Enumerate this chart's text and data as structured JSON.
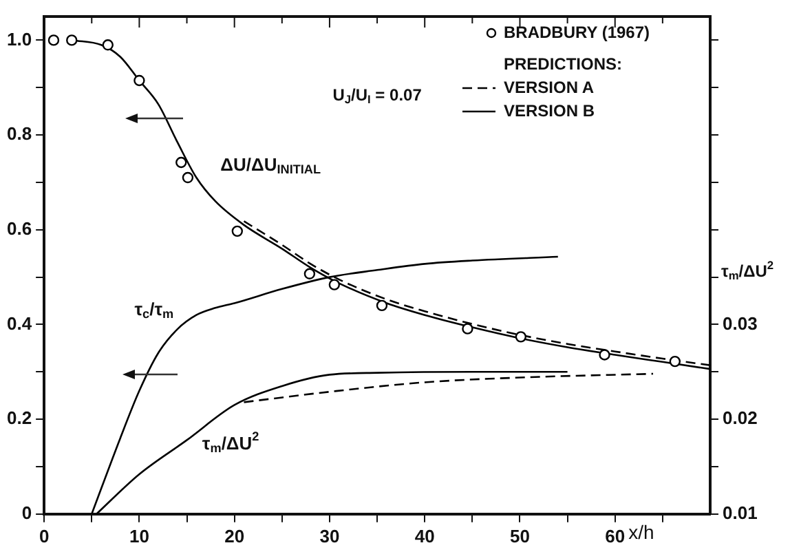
{
  "chart_data": {
    "type": "line",
    "xlabel": "x/h",
    "y2label": "τ$_{m}$/ΔU$^{2}$",
    "legend": "top right",
    "legend_title": "PREDICTIONS:",
    "grid": false,
    "xlim": [
      0,
      70
    ],
    "xticks": [
      0,
      {
        "value": 5,
        "label": null
      },
      10,
      {
        "value": 15,
        "label": null
      },
      20,
      {
        "value": 25,
        "label": null
      },
      30,
      {
        "value": 35,
        "label": null
      },
      40,
      {
        "value": 45,
        "label": null
      },
      50,
      {
        "value": 55,
        "label": null
      },
      60,
      {
        "value": 65,
        "label": null
      }
    ],
    "ylim": [
      0,
      1.05
    ],
    "yticks": [
      0,
      {
        "value": 0.1,
        "label": null
      },
      0.2,
      {
        "value": 0.3,
        "label": null
      },
      0.4,
      {
        "value": 0.5,
        "label": null
      },
      0.6,
      {
        "value": 0.7,
        "label": null
      },
      0.8,
      {
        "value": 0.9,
        "label": null
      },
      {
        "value": 1,
        "label": "1.0"
      }
    ],
    "y2lim": [
      0.01,
      0.0625
    ],
    "y2ticks": [
      0.01,
      {
        "value": 0.015,
        "label": null
      },
      0.02,
      {
        "value": 0.025,
        "label": null
      },
      0.03,
      {
        "value": 0.035,
        "label": null
      },
      {
        "value": 0.04,
        "label": null
      },
      {
        "value": 0.045,
        "label": null
      },
      {
        "value": 0.05,
        "label": null
      },
      {
        "value": 0.055,
        "label": null
      },
      {
        "value": 0.06,
        "label": null
      }
    ],
    "series": [
      {
        "name": "BRADBURY (1967)",
        "type": "scatter",
        "marker": "circle",
        "color": "#000000",
        "x": [
          1,
          2.9,
          6.7,
          10,
          14.4,
          15.1,
          20.3,
          27.9,
          30.5,
          35.5,
          44.5,
          50.1,
          58.9,
          66.3
        ],
        "values": [
          1.0,
          1.0,
          0.99,
          0.915,
          0.742,
          0.71,
          0.597,
          0.507,
          0.484,
          0.44,
          0.391,
          0.374,
          0.336,
          0.322
        ]
      },
      {
        "name": "VERSION A",
        "type": "line",
        "line_style": "dashed",
        "color": "#000000",
        "x": [
          21,
          25,
          28,
          31,
          36,
          40,
          45,
          50,
          55,
          60,
          65,
          70
        ],
        "values": [
          0.618,
          0.568,
          0.528,
          0.495,
          0.453,
          0.428,
          0.401,
          0.378,
          0.359,
          0.343,
          0.328,
          0.314
        ]
      },
      {
        "name": "VERSION B",
        "type": "line",
        "line_style": "solid",
        "color": "#000000",
        "x": [
          3,
          6,
          8,
          10,
          12,
          14,
          16,
          18,
          21,
          25,
          28,
          31,
          36,
          40,
          45,
          50,
          55,
          60,
          65,
          70
        ],
        "values": [
          1.0,
          0.99,
          0.965,
          0.915,
          0.865,
          0.785,
          0.71,
          0.66,
          0.61,
          0.56,
          0.52,
          0.487,
          0.445,
          0.42,
          0.394,
          0.371,
          0.352,
          0.336,
          0.321,
          0.306
        ]
      },
      {
        "type": "line",
        "line_style": "solid",
        "color": "#000000",
        "x": [
          5,
          8,
          10,
          12,
          14,
          16,
          18,
          20,
          25,
          30,
          35,
          40,
          45,
          54
        ],
        "values": [
          0,
          0.16,
          0.26,
          0.34,
          0.39,
          0.42,
          0.435,
          0.445,
          0.475,
          0.5,
          0.515,
          0.528,
          0.535,
          0.543
        ]
      },
      {
        "type": "line",
        "line_style": "solid",
        "axis": "y2",
        "color": "#000000",
        "x": [
          5.5,
          10,
          15,
          20,
          25,
          30,
          35,
          45,
          55
        ],
        "values": [
          0.01,
          0.0142,
          0.0178,
          0.0215,
          0.0235,
          0.0247,
          0.0249,
          0.025,
          0.025
        ]
      },
      {
        "type": "line",
        "line_style": "dashed",
        "axis": "y2",
        "color": "#000000",
        "x": [
          21,
          30,
          40,
          50,
          64
        ],
        "values": [
          0.0218,
          0.0229,
          0.0239,
          0.0244,
          0.0248
        ]
      }
    ],
    "annotations": [
      "ΔU/ΔU$_{INITIAL}$",
      "τ$_{c}$/τ$_{m}$",
      "τ$_{m}$/ΔU$^{2}$",
      "U$_{J}$/U$_{I}$ = 0.07"
    ]
  }
}
